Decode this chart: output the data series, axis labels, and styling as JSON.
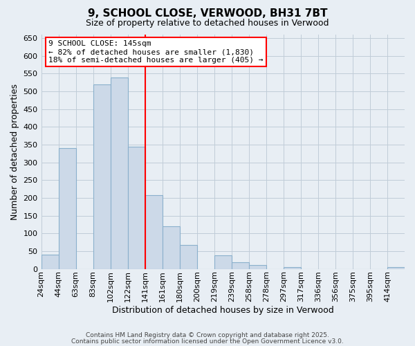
{
  "title": "9, SCHOOL CLOSE, VERWOOD, BH31 7BT",
  "subtitle": "Size of property relative to detached houses in Verwood",
  "xlabel": "Distribution of detached houses by size in Verwood",
  "ylabel": "Number of detached properties",
  "bin_labels": [
    "24sqm",
    "44sqm",
    "63sqm",
    "83sqm",
    "102sqm",
    "122sqm",
    "141sqm",
    "161sqm",
    "180sqm",
    "200sqm",
    "219sqm",
    "239sqm",
    "258sqm",
    "278sqm",
    "297sqm",
    "317sqm",
    "336sqm",
    "356sqm",
    "375sqm",
    "395sqm",
    "414sqm"
  ],
  "bar_values": [
    40,
    340,
    0,
    520,
    540,
    345,
    207,
    120,
    67,
    0,
    38,
    18,
    11,
    0,
    5,
    0,
    0,
    0,
    0,
    0,
    5
  ],
  "bar_color": "#ccd9e8",
  "bar_edge_color": "#8ab0cc",
  "vline_x_index": 6,
  "vline_color": "red",
  "ylim": [
    0,
    660
  ],
  "yticks": [
    0,
    50,
    100,
    150,
    200,
    250,
    300,
    350,
    400,
    450,
    500,
    550,
    600,
    650
  ],
  "annotation_title": "9 SCHOOL CLOSE: 145sqm",
  "annotation_line1": "← 82% of detached houses are smaller (1,830)",
  "annotation_line2": "18% of semi-detached houses are larger (405) →",
  "footer1": "Contains HM Land Registry data © Crown copyright and database right 2025.",
  "footer2": "Contains public sector information licensed under the Open Government Licence v3.0.",
  "bg_color": "#e8eef4",
  "plot_bg_color": "#e8eef4",
  "grid_color": "#c0ccd8"
}
